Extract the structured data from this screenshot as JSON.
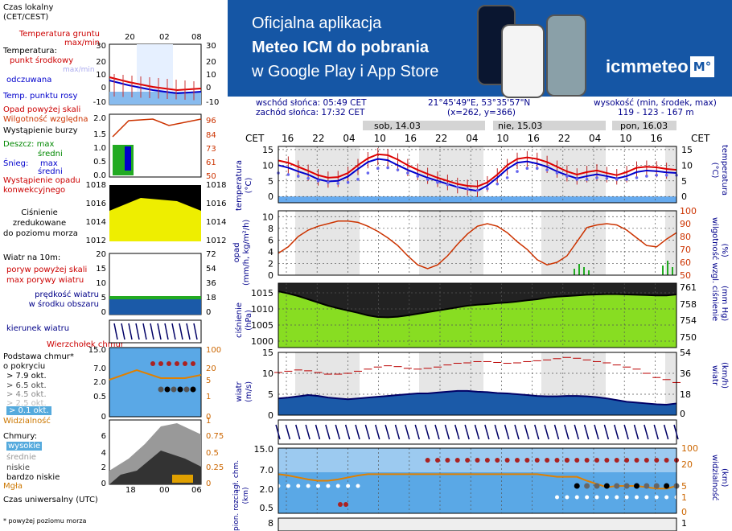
{
  "banner": {
    "line1": "Oficjalna aplikacja",
    "line2": "Meteo ICM do pobrania",
    "line3": "w Google Play i App Store",
    "logo": "icmmeteo",
    "logo_badge": "M°",
    "bg": "#1556a5"
  },
  "info": {
    "sunrise": "wschód słońca: 05:49 CET",
    "sunset": "zachód słońca: 17:32 CET",
    "coords": "21°45'49\"E, 53°35'57\"N",
    "grid": "(x=262, y=366)",
    "elev_title": "wysokość (min, środek, max)",
    "elev_values": "119 - 123 - 167 m"
  },
  "time_axis": {
    "cet_label": "CET",
    "hours": [
      "16",
      "22",
      "04",
      "10",
      "16",
      "22",
      "04",
      "10",
      "16",
      "22",
      "04",
      "10",
      "16"
    ],
    "days": [
      "sob, 14.03",
      "nie, 15.03",
      "pon, 16.03"
    ]
  },
  "legend": {
    "time_zone": "Czas lokalny\n(CET/CEST)",
    "ground": "Temperatura gruntu\nmax/min",
    "temperature": "Temperatura:",
    "midpoint": "punkt środkowy",
    "max_min": "max/min",
    "perceived": "odczuwana",
    "temp_dew": "Temp. punktu rosy",
    "precip_over": "Opad powyżej skali",
    "humidity": "Wilgotność względna",
    "storm": "Wystąpienie burzy",
    "rain": "Deszcz: max",
    "mean": "średni",
    "snow": "Śnieg:",
    "snow_max": "max",
    "snow_mean": "średni",
    "conv": "Wystąpienie opadu\nkonwekcyjnego",
    "pressure": "Ciśnienie\nzredukowane\ndo poziomu morza",
    "wind": "Wiatr na 10m:",
    "gust_over": "poryw powyżej skali",
    "gust_max": "max porywy wiatru",
    "wind_speed": "prędkość wiatru\nw środku obszaru",
    "wind_dir": "kierunek wiatru",
    "cloud_top": "Wierzchołek chmur",
    "cloud_base": "Podstawa chmur*\no pokryciu",
    "okt1": "> 7.9 okt.",
    "okt2": "> 6.5 okt.",
    "okt3": "> 4.5 okt.",
    "okt4": "> 2.5 okt.",
    "okt5": "> 0.1 okt.",
    "visibility": "Widzialność",
    "clouds": "Chmury:",
    "high": "wysokie",
    "mid": "średnie",
    "low": "niskie",
    "very_low": "bardzo niskie",
    "fog": "Mgła",
    "utc": "Czas uniwersalny (UTC)",
    "footnote": "* powyżej poziomu morza",
    "mini_top": [
      "20",
      "02",
      "08"
    ],
    "mini_bottom": [
      "18",
      "00",
      "06"
    ]
  },
  "panel_labels": {
    "temp": "temperatura\n(°C)",
    "precip": "opad\n(mm/h, kg/m²/h)",
    "humidity": "(%)\nwilgotność wzgl.",
    "pressure": "ciśnienie\n(hPa)",
    "pressure_r": "(mm Hg)\nciśnienie",
    "wind": "wiatr\n(m/s)",
    "wind_r": "(km/h)\nwiatr",
    "cloud": "pion. rozciągł. chm.\n(km)",
    "cloud_r": "(km)\nwidzialność"
  },
  "chart_data": [
    {
      "type": "line",
      "title": "temperatura (°C)",
      "ylim": [
        -2,
        16
      ],
      "yticks": [
        0,
        5,
        10,
        15
      ],
      "series": [
        {
          "name": "max/min",
          "color": "#dd0000",
          "values": [
            11.5,
            10.8,
            9.5,
            8.2,
            6.8,
            6,
            6.2,
            7.5,
            10,
            12.2,
            13.5,
            13.2,
            11.8,
            10,
            8.5,
            7.2,
            6,
            5,
            4,
            3.4,
            3.2,
            4.5,
            7,
            10,
            12,
            12.5,
            12,
            11,
            9.5,
            8,
            7,
            7.8,
            8.3,
            7.5,
            6.8,
            7.8,
            9.2,
            9.5,
            9.3,
            8.8,
            8.5
          ]
        },
        {
          "name": "punkt środkowy",
          "color": "#0000cc",
          "values": [
            10,
            9.2,
            8,
            7,
            5.5,
            4.8,
            5,
            6.4,
            8.8,
            11,
            12,
            11.6,
            10,
            8.5,
            7.2,
            6,
            5,
            4,
            3,
            2.3,
            1.8,
            3.5,
            6,
            8.8,
            10.8,
            11.2,
            10.5,
            9.5,
            8,
            6.8,
            5.8,
            6.5,
            7.1,
            6.5,
            5.8,
            6.5,
            7.8,
            8.3,
            8.1,
            7.7,
            7.5
          ]
        },
        {
          "name": "temp. punktu rosy",
          "color": "#6666ee",
          "values": [
            7.5,
            7,
            6.5,
            5.8,
            5,
            4.5,
            4.2,
            4.5,
            5.5,
            7.5,
            9,
            9.2,
            8.5,
            7.5,
            6.5,
            5.5,
            4.5,
            3.8,
            3,
            2.5,
            2,
            2.5,
            4,
            6,
            8,
            9,
            9,
            8.5,
            7.5,
            6.5,
            5.5,
            5.5,
            6,
            5.8,
            5.5,
            5.5,
            6,
            6.5,
            6.8,
            6.8,
            6.8
          ]
        }
      ]
    },
    {
      "type": "line",
      "title": "wilgotność wzgl. (%)",
      "ylim": [
        50,
        100
      ],
      "yticks": [
        50,
        60,
        70,
        80,
        90,
        100
      ],
      "series": [
        {
          "name": "wilgotność",
          "color": "#cc3300",
          "values": [
            67,
            72,
            80,
            85,
            88,
            90,
            92,
            92,
            91,
            88,
            84,
            79,
            73,
            65,
            58,
            55,
            58,
            65,
            74,
            82,
            88,
            90,
            88,
            83,
            76,
            70,
            62,
            58,
            60,
            65,
            76,
            87,
            89,
            90,
            89,
            85,
            79,
            73,
            72,
            78,
            83
          ]
        }
      ]
    },
    {
      "type": "line",
      "title": "ciśnienie (hPa)",
      "ylim": [
        998,
        1018
      ],
      "yticks": [
        1000,
        1005,
        1010,
        1015
      ],
      "series": [
        {
          "name": "ciśnienie",
          "color": "#000000",
          "values": [
            1015.5,
            1014.8,
            1014,
            1013,
            1012,
            1011,
            1010.2,
            1009.5,
            1008.8,
            1008,
            1007.5,
            1007.4,
            1007.6,
            1008,
            1008.5,
            1009,
            1009.5,
            1010,
            1010.5,
            1011,
            1011.3,
            1011.5,
            1011.8,
            1012,
            1012.3,
            1012.7,
            1013,
            1013.5,
            1013.8,
            1014,
            1014.2,
            1014.4,
            1014.5,
            1014.6,
            1014.6,
            1014.5,
            1014.4,
            1014.3,
            1014.2,
            1014.2,
            1014.5
          ]
        }
      ]
    },
    {
      "type": "line",
      "title": "wiatr (m/s)",
      "ylim": [
        0,
        15
      ],
      "yticks": [
        0,
        5,
        10,
        15
      ],
      "series": [
        {
          "name": "max porywy wiatru",
          "color": "#bb0000",
          "values": [
            10.2,
            10.5,
            10.8,
            10.6,
            10.2,
            9.8,
            9.8,
            10,
            10.5,
            11,
            11.5,
            11.8,
            11.6,
            11.2,
            11,
            11.2,
            11.5,
            12,
            12.4,
            12.5,
            12.8,
            12.8,
            12.6,
            12.4,
            12.5,
            12.8,
            13,
            13.2,
            13.5,
            13.8,
            13.6,
            13.2,
            12.8,
            12.5,
            12,
            11.5,
            11,
            10,
            9,
            8.5,
            7.8
          ]
        },
        {
          "name": "prędkość wiatru",
          "color": "#0000aa",
          "values": [
            4,
            4.2,
            4.5,
            4.8,
            4.6,
            4.2,
            4,
            3.8,
            4,
            4.2,
            4.4,
            4.6,
            4.8,
            5,
            5.2,
            5.2,
            5.4,
            5.6,
            5.8,
            5.8,
            5.6,
            5.5,
            5.3,
            5.2,
            5,
            4.8,
            4.6,
            4.5,
            4.5,
            4.6,
            4.6,
            4.5,
            4.3,
            4,
            3.6,
            3.2,
            3,
            2.8,
            2.6,
            2.5,
            2.8
          ]
        }
      ]
    },
    {
      "type": "line",
      "title": "widzialność (km)",
      "ylim": [
        0,
        100
      ],
      "series": [
        {
          "name": "widzialność",
          "color": "#e08000",
          "values": [
            60,
            58,
            55,
            52,
            50,
            50,
            52,
            55,
            58,
            60,
            60,
            60,
            60,
            60,
            60,
            60,
            60,
            60,
            60,
            60,
            60,
            60,
            60,
            60,
            60,
            60,
            60,
            58,
            56,
            56,
            56,
            50,
            45,
            40,
            42,
            42,
            42,
            40,
            38,
            38,
            42
          ]
        }
      ]
    }
  ],
  "colors": {
    "temp_max": "#dd0000",
    "temp_mid": "#0000cc",
    "dew": "#6666ee",
    "humidity": "#cc3300",
    "wind_gust": "#bb0000",
    "wind_speed": "#0000aa",
    "visibility": "#e08000"
  }
}
